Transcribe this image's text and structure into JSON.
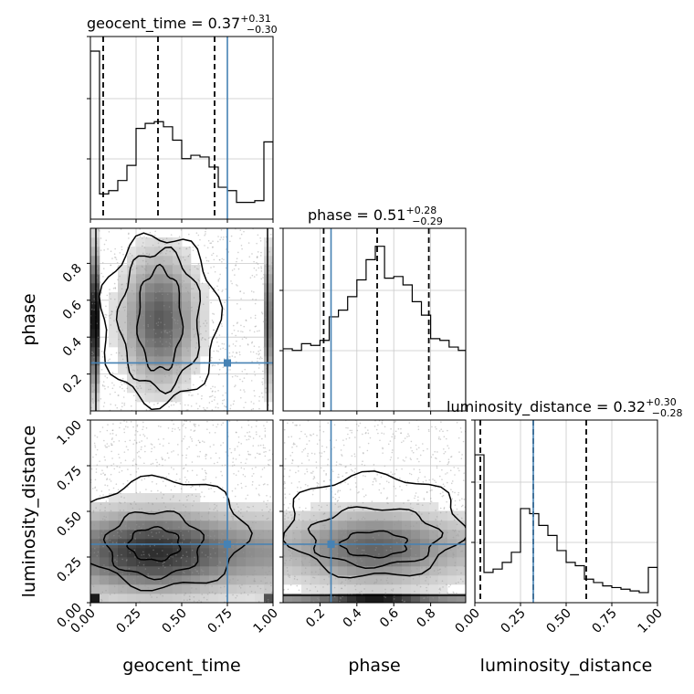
{
  "chart_data": {
    "type": "corner",
    "parameters": [
      "geocent_time",
      "phase",
      "luminosity_distance"
    ],
    "truth": {
      "geocent_time": 0.75,
      "phase": 0.26,
      "luminosity_distance": 0.32
    },
    "truth_color": "#4682b4",
    "grid": true,
    "panels": [
      {
        "kind": "hist1d",
        "param": "geocent_time",
        "title_label": "geocent_time = ",
        "median": "0.37",
        "upper": "+0.31",
        "lower": "−0.30",
        "xlim": [
          0,
          1
        ],
        "quantiles": [
          0.07,
          0.37,
          0.68
        ],
        "bin_edges": [
          0,
          0.05,
          0.1,
          0.15,
          0.2,
          0.25,
          0.3,
          0.35,
          0.4,
          0.45,
          0.5,
          0.55,
          0.6,
          0.65,
          0.7,
          0.75,
          0.8,
          0.85,
          0.9,
          0.95,
          1.0
        ],
        "counts": [
          1.0,
          0.15,
          0.17,
          0.23,
          0.32,
          0.54,
          0.57,
          0.58,
          0.55,
          0.47,
          0.36,
          0.38,
          0.37,
          0.31,
          0.19,
          0.17,
          0.1,
          0.1,
          0.11,
          0.46
        ]
      },
      {
        "kind": "hist1d",
        "param": "phase",
        "title_label": "phase = ",
        "median": "0.51",
        "upper": "+0.28",
        "lower": "−0.29",
        "xlim": [
          0.0,
          0.99
        ],
        "xticks": [
          0.2,
          0.4,
          0.6,
          0.8
        ],
        "xtick_labels": [
          "0.2",
          "0.4",
          "0.6",
          "0.8"
        ],
        "quantiles": [
          0.22,
          0.51,
          0.79
        ],
        "bin_edges": [
          0,
          0.05,
          0.1,
          0.15,
          0.2,
          0.25,
          0.3,
          0.35,
          0.4,
          0.45,
          0.5,
          0.55,
          0.6,
          0.65,
          0.7,
          0.75,
          0.8,
          0.85,
          0.9,
          0.95,
          0.99
        ],
        "counts": [
          0.37,
          0.36,
          0.4,
          0.39,
          0.42,
          0.56,
          0.6,
          0.68,
          0.78,
          0.9,
          0.98,
          0.79,
          0.8,
          0.75,
          0.65,
          0.57,
          0.43,
          0.42,
          0.38,
          0.36
        ]
      },
      {
        "kind": "hist1d",
        "param": "luminosity_distance",
        "title_label": "luminosity_distance = ",
        "median": "0.32",
        "upper": "+0.30",
        "lower": "−0.28",
        "xlim": [
          0,
          1
        ],
        "quantiles": [
          0.03,
          0.32,
          0.61
        ],
        "bin_edges": [
          0,
          0.05,
          0.1,
          0.15,
          0.2,
          0.25,
          0.3,
          0.35,
          0.4,
          0.45,
          0.5,
          0.55,
          0.6,
          0.65,
          0.7,
          0.75,
          0.8,
          0.85,
          0.9,
          0.95,
          1.0
        ],
        "counts": [
          0.88,
          0.18,
          0.2,
          0.24,
          0.3,
          0.56,
          0.53,
          0.46,
          0.4,
          0.31,
          0.24,
          0.22,
          0.14,
          0.12,
          0.1,
          0.09,
          0.08,
          0.07,
          0.06,
          0.21
        ]
      },
      {
        "kind": "hist2d",
        "x": "geocent_time",
        "y": "phase",
        "xlim": [
          0,
          1
        ],
        "ylim": [
          0.0,
          0.99
        ],
        "yticks": [
          0.2,
          0.4,
          0.6,
          0.8
        ],
        "ytick_labels": [
          "0.2",
          "0.4",
          "0.6",
          "0.8"
        ]
      },
      {
        "kind": "hist2d",
        "x": "geocent_time",
        "y": "luminosity_distance",
        "xlim": [
          0,
          1
        ],
        "ylim": [
          0,
          1
        ]
      },
      {
        "kind": "hist2d",
        "x": "phase",
        "y": "luminosity_distance",
        "xlim": [
          0.0,
          0.99
        ],
        "ylim": [
          0,
          1
        ]
      }
    ],
    "axis_ticks_01": [
      "0.00",
      "0.25",
      "0.50",
      "0.75",
      "1.00"
    ],
    "axis_ticks_01_values": [
      0,
      0.25,
      0.5,
      0.75,
      1.0
    ],
    "xlabels": [
      "geocent_time",
      "phase",
      "luminosity_distance"
    ],
    "ylabels": [
      "phase",
      "luminosity_distance"
    ]
  }
}
